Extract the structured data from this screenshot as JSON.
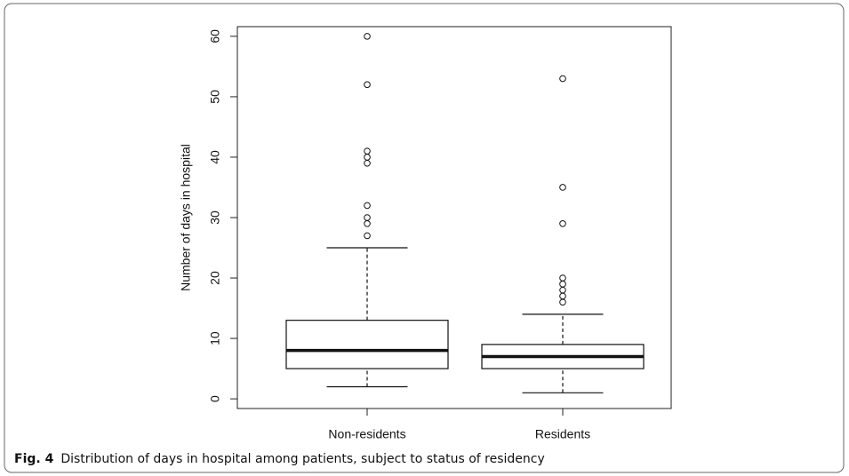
{
  "chart_data": {
    "type": "boxplot",
    "y_label": "Number of days in hospital",
    "caption_label": "Fig. 4",
    "caption": "Distribution of days in hospital among patients, subject to status of residency",
    "categories": [
      "Non-residents",
      "Residents"
    ],
    "boxes": [
      {
        "whisker_low": 2,
        "q1": 5,
        "median": 8,
        "q3": 13,
        "whisker_high": 25,
        "outliers": [
          27,
          29,
          30,
          32,
          39,
          40,
          41,
          52,
          60
        ]
      },
      {
        "whisker_low": 1,
        "q1": 5,
        "median": 7,
        "q3": 9,
        "whisker_high": 14,
        "outliers": [
          16,
          17,
          18,
          19,
          20,
          29,
          35,
          53
        ]
      }
    ],
    "ylim": [
      -1.6,
      61.6
    ],
    "yticks": [
      0,
      10,
      20,
      30,
      40,
      50,
      60
    ]
  }
}
